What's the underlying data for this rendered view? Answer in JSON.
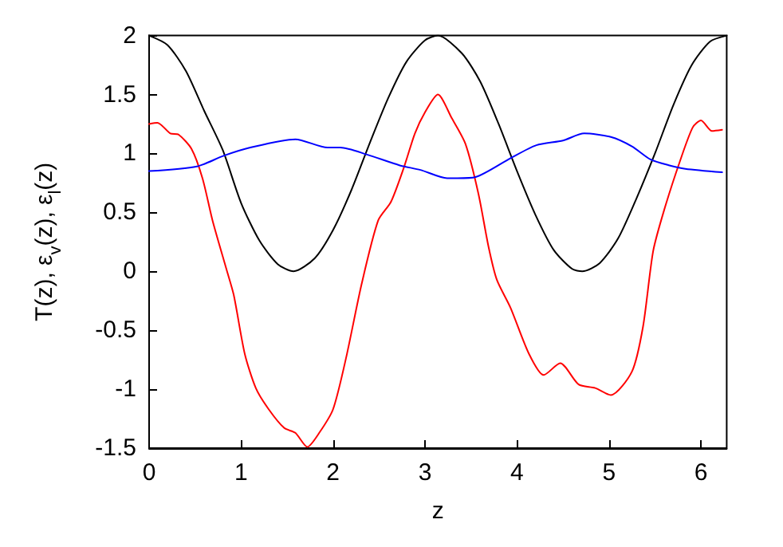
{
  "chart_data": {
    "type": "line",
    "xlabel": "z",
    "ylabel": "T(z), ε$_{v}$(z), ε$_{l}$(z)",
    "xlim": [
      0,
      6.28
    ],
    "xticks": [
      0,
      1,
      2,
      3,
      4,
      5,
      6
    ],
    "ylim": [
      -1.5,
      2
    ],
    "yticks": [
      -1.5,
      -1,
      -0.5,
      0,
      0.5,
      1,
      1.5,
      2
    ],
    "grid": false,
    "marker": "none",
    "line_style": "solid",
    "series": [
      {
        "color": "#000000",
        "x": [
          0,
          0.2,
          0.4,
          0.6,
          0.8,
          1.0,
          1.2,
          1.4,
          1.57,
          1.8,
          2.0,
          2.2,
          2.4,
          2.6,
          2.8,
          3.0,
          3.14,
          3.4,
          3.6,
          3.8,
          4.0,
          4.2,
          4.4,
          4.6,
          4.71,
          4.9,
          5.1,
          5.3,
          5.5,
          5.7,
          5.9,
          6.1,
          6.28
        ],
        "values": [
          2,
          1.92,
          1.7,
          1.36,
          1.03,
          0.58,
          0.26,
          0.06,
          0,
          0.11,
          0.35,
          0.69,
          1.09,
          1.47,
          1.78,
          1.96,
          2,
          1.85,
          1.61,
          1.25,
          0.85,
          0.48,
          0.18,
          0.02,
          0,
          0.07,
          0.28,
          0.62,
          1.0,
          1.41,
          1.75,
          1.95,
          2
        ]
      },
      {
        "color": "#ff0000",
        "x": [
          0,
          0.09,
          0.23,
          0.32,
          0.46,
          0.58,
          0.69,
          0.84,
          0.92,
          1.04,
          1.16,
          1.3,
          1.47,
          1.59,
          1.72,
          1.85,
          2.0,
          2.14,
          2.31,
          2.49,
          2.63,
          2.77,
          2.89,
          3.0,
          3.14,
          3.29,
          3.44,
          3.58,
          3.69,
          3.78,
          3.93,
          4.13,
          4.29,
          4.47,
          4.67,
          4.85,
          5.02,
          5.25,
          5.37,
          5.48,
          5.6,
          5.77,
          5.91,
          6.0,
          6.12,
          6.23
        ],
        "values": [
          1.25,
          1.26,
          1.17,
          1.16,
          1.04,
          0.79,
          0.43,
          0.02,
          -0.2,
          -0.7,
          -0.99,
          -1.17,
          -1.33,
          -1.37,
          -1.49,
          -1.37,
          -1.17,
          -0.74,
          -0.11,
          0.43,
          0.59,
          0.88,
          1.17,
          1.35,
          1.5,
          1.3,
          1.08,
          0.66,
          0.21,
          -0.07,
          -0.31,
          -0.7,
          -0.88,
          -0.78,
          -0.96,
          -0.99,
          -1.05,
          -0.85,
          -0.47,
          0.17,
          0.52,
          0.93,
          1.22,
          1.28,
          1.19,
          1.2
        ]
      },
      {
        "color": "#0000ff",
        "x": [
          0,
          0.52,
          0.81,
          1.1,
          1.59,
          1.94,
          2.08,
          2.37,
          2.72,
          2.95,
          3.24,
          3.35,
          3.55,
          3.93,
          4.21,
          4.5,
          4.73,
          5.02,
          5.25,
          5.45,
          5.65,
          5.83,
          6.23
        ],
        "values": [
          0.85,
          0.89,
          0.98,
          1.05,
          1.12,
          1.05,
          1.05,
          0.99,
          0.9,
          0.86,
          0.79,
          0.79,
          0.8,
          0.96,
          1.07,
          1.11,
          1.17,
          1.14,
          1.06,
          0.95,
          0.9,
          0.87,
          0.84
        ]
      }
    ]
  }
}
